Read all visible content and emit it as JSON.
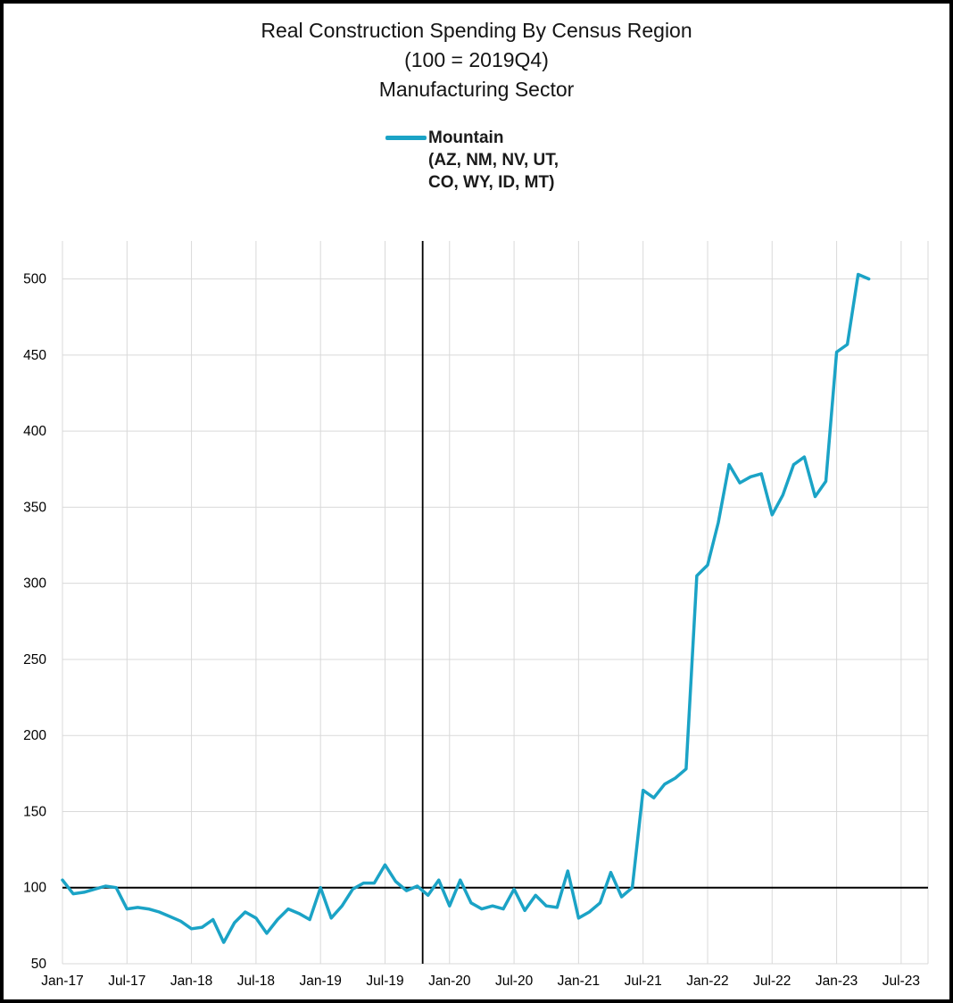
{
  "page": {
    "background": "#ffffff",
    "frame_color": "#000000"
  },
  "title": {
    "line1": "Real Construction Spending By Census Region",
    "line2": "(100 = 2019Q4)",
    "line3": "Manufacturing Sector"
  },
  "legend": {
    "series_label": "Mountain",
    "series_sublabel1": "(AZ, NM, NV, UT,",
    "series_sublabel2": "CO, WY, ID, MT)",
    "swatch_color": "#1BA3C6"
  },
  "chart_data": {
    "type": "line",
    "title": "Real Construction Spending By Census Region (100 = 2019Q4) Manufacturing Sector",
    "x_start": "Jan-17",
    "x_interval": "monthly",
    "series": [
      {
        "name": "Mountain (AZ, NM, NV, UT, CO, WY, ID, MT)",
        "color": "#1BA3C6",
        "values": [
          105,
          96,
          97,
          99,
          101,
          100,
          86,
          87,
          86,
          84,
          81,
          78,
          73,
          74,
          79,
          64,
          77,
          84,
          80,
          70,
          79,
          86,
          83,
          79,
          100,
          80,
          88,
          99,
          103,
          103,
          115,
          104,
          98,
          101,
          95,
          105,
          88,
          105,
          90,
          86,
          88,
          86,
          99,
          85,
          95,
          88,
          87,
          111,
          80,
          84,
          90,
          110,
          94,
          100,
          164,
          159,
          168,
          172,
          178,
          305,
          312,
          340,
          378,
          366,
          370,
          372,
          345,
          358,
          378,
          383,
          357,
          367,
          452,
          457,
          503,
          500
        ]
      }
    ],
    "x_ticks": {
      "labels": [
        "Jan-17",
        "Jul-17",
        "Jan-18",
        "Jul-18",
        "Jan-19",
        "Jul-19",
        "Jan-20",
        "Jul-20",
        "Jan-21",
        "Jul-21",
        "Jan-22",
        "Jul-22",
        "Jan-23",
        "Jul-23"
      ],
      "month_index": [
        0,
        6,
        12,
        18,
        24,
        30,
        36,
        42,
        48,
        54,
        60,
        66,
        72,
        78
      ]
    },
    "y_ticks": [
      50,
      100,
      150,
      200,
      250,
      300,
      350,
      400,
      450,
      500
    ],
    "ylim": [
      50,
      525
    ],
    "xlim_months": [
      0,
      80.5
    ],
    "grid": true,
    "gridline_color": "#d9d9d9",
    "reference_lines": {
      "horizontal_y": 100,
      "vertical_at_month_index": 33.5,
      "color": "#000000"
    },
    "legend_position": "top-center"
  }
}
